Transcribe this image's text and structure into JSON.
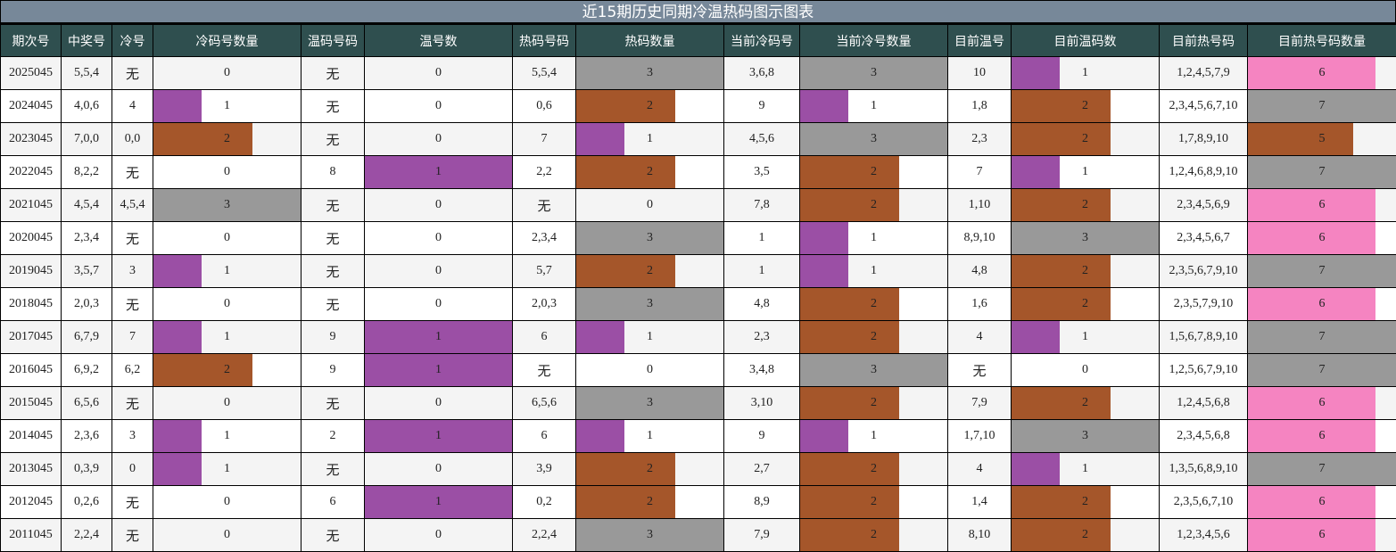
{
  "title": "近15期历史同期冷温热码图示图表",
  "colors": {
    "title_bg": "#778899",
    "header_bg": "#2f4f4f",
    "bar_1": "#9b4fa5",
    "bar_2": "#a5562a",
    "bar_3": "#999999",
    "bar_6": "#f584c1",
    "bar_5": "#a5562a",
    "bar_7": "#999999"
  },
  "headers": [
    "期次号",
    "中奖号",
    "冷号",
    "冷码号数量",
    "温码号码",
    "温号数",
    "热码号码",
    "热码数量",
    "当前冷码号",
    "当前冷号数量",
    "目前温号",
    "目前温码数",
    "目前热号码",
    "目前热号码数量"
  ],
  "rows": [
    [
      "2025045",
      "5,5,4",
      "无",
      "0",
      "无",
      "0",
      "5,5,4",
      "3",
      "3,6,8",
      "3",
      "10",
      "1",
      "1,2,4,5,7,9",
      "6"
    ],
    [
      "2024045",
      "4,0,6",
      "4",
      "1",
      "无",
      "0",
      "0,6",
      "2",
      "9",
      "1",
      "1,8",
      "2",
      "2,3,4,5,6,7,10",
      "7"
    ],
    [
      "2023045",
      "7,0,0",
      "0,0",
      "2",
      "无",
      "0",
      "7",
      "1",
      "4,5,6",
      "3",
      "2,3",
      "2",
      "1,7,8,9,10",
      "5"
    ],
    [
      "2022045",
      "8,2,2",
      "无",
      "0",
      "8",
      "1",
      "2,2",
      "2",
      "3,5",
      "2",
      "7",
      "1",
      "1,2,4,6,8,9,10",
      "7"
    ],
    [
      "2021045",
      "4,5,4",
      "4,5,4",
      "3",
      "无",
      "0",
      "无",
      "0",
      "7,8",
      "2",
      "1,10",
      "2",
      "2,3,4,5,6,9",
      "6"
    ],
    [
      "2020045",
      "2,3,4",
      "无",
      "0",
      "无",
      "0",
      "2,3,4",
      "3",
      "1",
      "1",
      "8,9,10",
      "3",
      "2,3,4,5,6,7",
      "6"
    ],
    [
      "2019045",
      "3,5,7",
      "3",
      "1",
      "无",
      "0",
      "5,7",
      "2",
      "1",
      "1",
      "4,8",
      "2",
      "2,3,5,6,7,9,10",
      "7"
    ],
    [
      "2018045",
      "2,0,3",
      "无",
      "0",
      "无",
      "0",
      "2,0,3",
      "3",
      "4,8",
      "2",
      "1,6",
      "2",
      "2,3,5,7,9,10",
      "6"
    ],
    [
      "2017045",
      "6,7,9",
      "7",
      "1",
      "9",
      "1",
      "6",
      "1",
      "2,3",
      "2",
      "4",
      "1",
      "1,5,6,7,8,9,10",
      "7"
    ],
    [
      "2016045",
      "6,9,2",
      "6,2",
      "2",
      "9",
      "1",
      "无",
      "0",
      "3,4,8",
      "3",
      "无",
      "0",
      "1,2,5,6,7,9,10",
      "7"
    ],
    [
      "2015045",
      "6,5,6",
      "无",
      "0",
      "无",
      "0",
      "6,5,6",
      "3",
      "3,10",
      "2",
      "7,9",
      "2",
      "1,2,4,5,6,8",
      "6"
    ],
    [
      "2014045",
      "2,3,6",
      "3",
      "1",
      "2",
      "1",
      "6",
      "1",
      "9",
      "1",
      "1,7,10",
      "3",
      "2,3,4,5,6,8",
      "6"
    ],
    [
      "2013045",
      "0,3,9",
      "0",
      "1",
      "无",
      "0",
      "3,9",
      "2",
      "2,7",
      "2",
      "4",
      "1",
      "1,3,5,6,8,9,10",
      "7"
    ],
    [
      "2012045",
      "0,2,6",
      "无",
      "0",
      "6",
      "1",
      "0,2",
      "2",
      "8,9",
      "2",
      "1,4",
      "2",
      "2,3,5,6,7,10",
      "6"
    ],
    [
      "2011045",
      "2,2,4",
      "无",
      "0",
      "无",
      "0",
      "2,2,4",
      "3",
      "7,9",
      "2",
      "8,10",
      "2",
      "1,2,3,4,5,6",
      "6"
    ]
  ],
  "chart_data": {
    "type": "table",
    "title": "近15期历史同期冷温热码图示图表",
    "columns": [
      "期次号",
      "中奖号",
      "冷号",
      "冷码号数量",
      "温码号码",
      "温号数",
      "热码号码",
      "热码数量",
      "当前冷码号",
      "当前冷号数量",
      "目前温号",
      "目前温码数",
      "目前热号码",
      "目前热号码数量"
    ],
    "categories": [
      "2025045",
      "2024045",
      "2023045",
      "2022045",
      "2021045",
      "2020045",
      "2019045",
      "2018045",
      "2017045",
      "2016045",
      "2015045",
      "2014045",
      "2013045",
      "2012045",
      "2011045"
    ],
    "series": [
      {
        "name": "冷码号数量",
        "values": [
          0,
          1,
          2,
          0,
          3,
          0,
          1,
          0,
          1,
          2,
          0,
          1,
          1,
          0,
          0
        ],
        "max": 3
      },
      {
        "name": "温号数",
        "values": [
          0,
          0,
          0,
          1,
          0,
          0,
          0,
          0,
          1,
          1,
          0,
          1,
          0,
          1,
          0
        ],
        "max": 1
      },
      {
        "name": "热码数量",
        "values": [
          3,
          2,
          1,
          2,
          0,
          3,
          2,
          3,
          1,
          0,
          3,
          1,
          2,
          2,
          3
        ],
        "max": 3
      },
      {
        "name": "当前冷号数量",
        "values": [
          3,
          1,
          3,
          2,
          2,
          1,
          1,
          2,
          2,
          3,
          2,
          1,
          2,
          2,
          2
        ],
        "max": 3
      },
      {
        "name": "目前温码数",
        "values": [
          1,
          2,
          2,
          1,
          2,
          3,
          2,
          2,
          1,
          0,
          2,
          3,
          1,
          2,
          2
        ],
        "max": 3
      },
      {
        "name": "目前热号码数量",
        "values": [
          6,
          7,
          5,
          7,
          6,
          6,
          7,
          6,
          7,
          7,
          6,
          6,
          7,
          6,
          6
        ],
        "max": 7
      }
    ],
    "legend": {
      "1": "#9b4fa5",
      "2": "#a5562a",
      "3": "#999999",
      "5": "#a5562a",
      "6": "#f584c1",
      "7": "#999999"
    }
  }
}
